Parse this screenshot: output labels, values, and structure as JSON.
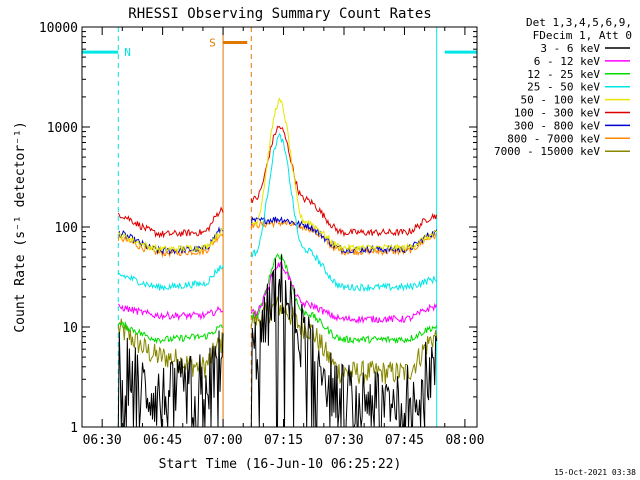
{
  "chart_data": {
    "type": "line",
    "title": "RHESSI Observing Summary Count Rates",
    "xlabel": "Start Time (16-Jun-10 06:25:22)",
    "ylabel": "Count Rate (s⁻¹ detector⁻¹)",
    "y_scale": "log",
    "ylim": [
      1,
      10000
    ],
    "xlim": [
      "06:25",
      "08:03"
    ],
    "x_ticks": [
      "06:30",
      "06:45",
      "07:00",
      "07:15",
      "07:30",
      "07:45",
      "08:00"
    ],
    "y_ticks": [
      "1",
      "10",
      "100",
      "1000",
      "10000"
    ],
    "legend_header": [
      "Det 1,3,4,5,6,9,",
      "FDecim 1, Att 0"
    ],
    "legend_position": "right",
    "timestamp": "15-Oct-2021 03:38",
    "flags": [
      {
        "label": "N",
        "color": "#00e6e6",
        "bars": [
          [
            "06:25",
            "06:34"
          ],
          [
            "07:55",
            "08:03"
          ]
        ],
        "level": 5600
      },
      {
        "label": "S",
        "color": "#e07800",
        "bars": [
          [
            "07:00",
            "07:06"
          ]
        ],
        "level": 7000
      }
    ],
    "data_gaps": [
      [
        "06:25",
        "06:34"
      ],
      [
        "07:00",
        "07:07"
      ],
      [
        "07:53",
        "08:03"
      ]
    ],
    "series": [
      {
        "name": "3 - 6 keV",
        "color": "#000000",
        "times": [
          "06:32",
          "06:45",
          "06:55",
          "07:00",
          "07:08",
          "07:14",
          "07:20",
          "07:30",
          "07:45",
          "07:53"
        ],
        "values": [
          4.5,
          2.0,
          2.5,
          5,
          6,
          26,
          8,
          2.0,
          2.0,
          4.0
        ]
      },
      {
        "name": "6 - 12 keV",
        "color": "#ff00ff",
        "times": [
          "06:32",
          "06:45",
          "06:55",
          "07:00",
          "07:08",
          "07:14",
          "07:20",
          "07:30",
          "07:45",
          "07:53"
        ],
        "values": [
          16,
          13,
          13,
          15,
          14,
          42,
          17,
          12,
          12,
          16
        ]
      },
      {
        "name": "12 - 25 keV",
        "color": "#00dd00",
        "times": [
          "06:32",
          "06:45",
          "06:55",
          "07:00",
          "07:08",
          "07:14",
          "07:20",
          "07:30",
          "07:45",
          "07:53"
        ],
        "values": [
          11,
          7.5,
          8,
          10,
          13,
          52,
          14,
          7.5,
          7.5,
          10
        ]
      },
      {
        "name": "25 - 50 keV",
        "color": "#00e6e6",
        "times": [
          "06:32",
          "06:45",
          "06:55",
          "07:00",
          "07:08",
          "07:14",
          "07:20",
          "07:30",
          "07:45",
          "07:53"
        ],
        "values": [
          34,
          25,
          27,
          40,
          55,
          800,
          60,
          25,
          25,
          30
        ]
      },
      {
        "name": "50 - 100 keV",
        "color": "#e6e600",
        "times": [
          "06:32",
          "06:45",
          "06:55",
          "07:00",
          "07:08",
          "07:14",
          "07:20",
          "07:30",
          "07:45",
          "07:53"
        ],
        "values": [
          85,
          60,
          62,
          90,
          110,
          1800,
          115,
          62,
          62,
          85
        ]
      },
      {
        "name": "100 - 300 keV",
        "color": "#dd0000",
        "times": [
          "06:32",
          "06:45",
          "06:55",
          "07:00",
          "07:08",
          "07:14",
          "07:20",
          "07:30",
          "07:45",
          "07:53"
        ],
        "values": [
          140,
          85,
          88,
          150,
          190,
          1000,
          190,
          88,
          88,
          130
        ]
      },
      {
        "name": "300 - 800 keV",
        "color": "#0000cc",
        "times": [
          "06:32",
          "06:45",
          "06:55",
          "07:00",
          "07:08",
          "07:14",
          "07:20",
          "07:30",
          "07:45",
          "07:53"
        ],
        "values": [
          90,
          58,
          60,
          95,
          115,
          120,
          105,
          60,
          60,
          88
        ]
      },
      {
        "name": "800 - 7000 keV",
        "color": "#ff8800",
        "times": [
          "06:32",
          "06:45",
          "06:55",
          "07:00",
          "07:08",
          "07:14",
          "07:20",
          "07:30",
          "07:45",
          "07:53"
        ],
        "values": [
          80,
          55,
          57,
          85,
          105,
          110,
          100,
          57,
          57,
          82
        ]
      },
      {
        "name": "7000 - 15000 keV",
        "color": "#888800",
        "times": [
          "06:32",
          "06:45",
          "06:55",
          "07:00",
          "07:08",
          "07:14",
          "07:20",
          "07:30",
          "07:45",
          "07:53"
        ],
        "values": [
          10,
          5,
          4,
          7,
          12,
          16,
          10,
          3.5,
          3.5,
          8
        ]
      }
    ]
  }
}
